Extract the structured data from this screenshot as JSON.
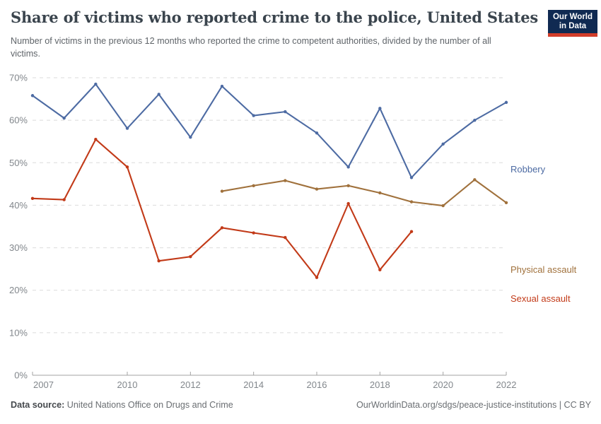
{
  "header": {
    "title": "Share of victims who reported crime to the police, United States",
    "subtitle": "Number of victims in the previous 12 months who reported the crime to competent authorities, divided by the number of all victims.",
    "logo": {
      "line1": "Our World",
      "line2": "in Data",
      "bg_color": "#102A52",
      "accent_color": "#D23D2A",
      "text_color": "#FFFFFF"
    }
  },
  "chart_data": {
    "type": "line",
    "title": "Share of victims who reported crime to the police, United States",
    "xlabel": "",
    "ylabel": "",
    "xlim": [
      2007,
      2022
    ],
    "ylim": [
      0,
      70
    ],
    "yticks": [
      0,
      10,
      20,
      30,
      40,
      50,
      60,
      70
    ],
    "ytick_suffix": "%",
    "xticks": [
      2007,
      2010,
      2012,
      2014,
      2016,
      2018,
      2020,
      2022
    ],
    "grid": "horizontal-dashed",
    "grid_color": "#DBDBDB",
    "axis_color": "#A3A3A3",
    "tick_label_color": "#82878C",
    "legend_position": "right-end-labels",
    "series": [
      {
        "name": "Robbery",
        "color": "#4D6BA3",
        "x": [
          2007,
          2008,
          2009,
          2010,
          2011,
          2012,
          2013,
          2014,
          2015,
          2016,
          2017,
          2018,
          2019,
          2020,
          2021,
          2022
        ],
        "values": [
          65.8,
          60.5,
          68.5,
          58.1,
          66.1,
          56.0,
          68.0,
          61.1,
          62.0,
          57.0,
          49.0,
          62.8,
          46.5,
          54.4,
          60.0,
          64.2
        ]
      },
      {
        "name": "Physical assault",
        "color": "#A0713C",
        "x": [
          2013,
          2014,
          2015,
          2016,
          2017,
          2018,
          2019,
          2020,
          2021,
          2022
        ],
        "values": [
          43.3,
          44.6,
          45.8,
          43.8,
          44.6,
          42.9,
          40.8,
          39.9,
          46.0,
          40.6
        ]
      },
      {
        "name": "Sexual assault",
        "color": "#C23A18",
        "x": [
          2007,
          2008,
          2009,
          2010,
          2011,
          2012,
          2013,
          2014,
          2015,
          2016,
          2017,
          2018,
          2019
        ],
        "values": [
          41.6,
          41.3,
          55.5,
          49.0,
          26.9,
          27.9,
          34.7,
          33.5,
          32.4,
          23.0,
          40.4,
          24.8,
          33.8
        ]
      }
    ]
  },
  "footer": {
    "datasource_label": "Data source:",
    "datasource_value": "United Nations Office on Drugs and Crime",
    "credit": "OurWorldinData.org/sdgs/peace-justice-institutions | CC BY"
  }
}
